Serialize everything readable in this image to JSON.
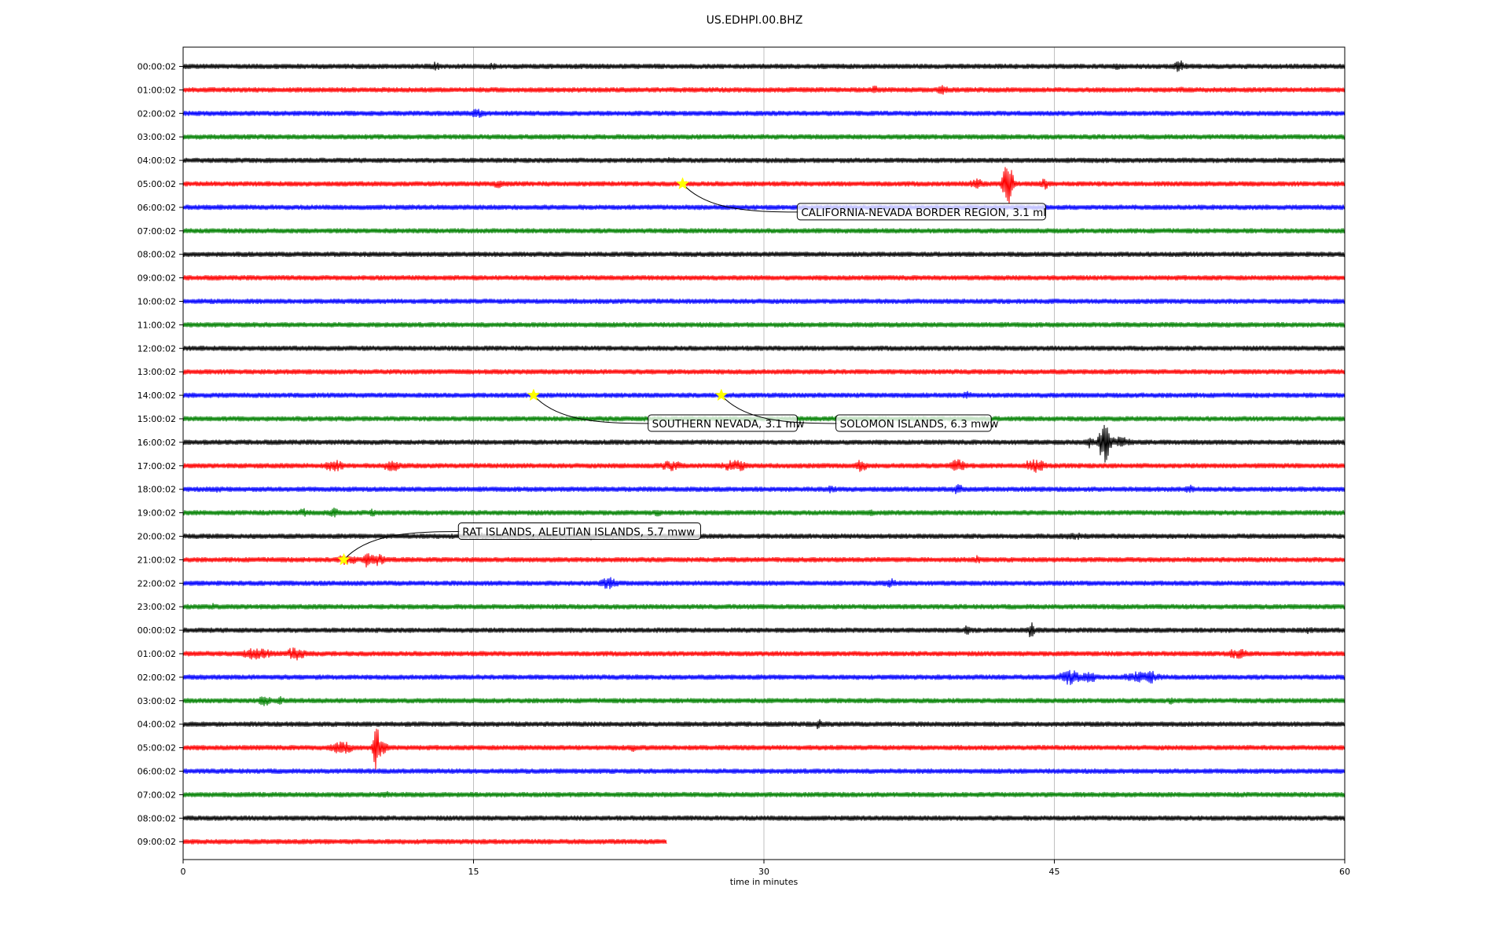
{
  "chart_data": {
    "type": "line",
    "title": "US.EDHPI.00.BHZ",
    "xlabel": "time in minutes",
    "ylabel": "",
    "xlim": [
      0,
      60
    ],
    "xticks": [
      "0",
      "15",
      "30",
      "45",
      "60"
    ],
    "xtick_values": [
      0,
      15,
      30,
      45,
      60
    ],
    "grid": "vertical",
    "trace_colors": [
      "#000000",
      "#ff0000",
      "#0000ff",
      "#008000"
    ],
    "rows": [
      {
        "label": "00:00:02",
        "end": 60,
        "bursts": [
          [
            13,
            0.4,
            6
          ],
          [
            16,
            0.3,
            5
          ],
          [
            48.2,
            0.3,
            5
          ],
          [
            51.5,
            0.4,
            8
          ]
        ]
      },
      {
        "label": "01:00:02",
        "end": 60,
        "bursts": [
          [
            35.7,
            0.3,
            6
          ],
          [
            39.2,
            0.3,
            9
          ],
          [
            51.5,
            0.3,
            5
          ]
        ]
      },
      {
        "label": "02:00:02",
        "end": 60,
        "bursts": [
          [
            15.2,
            0.6,
            6
          ]
        ]
      },
      {
        "label": "03:00:02",
        "end": 60,
        "bursts": []
      },
      {
        "label": "04:00:02",
        "end": 60,
        "bursts": [
          [
            25.2,
            0.3,
            5
          ]
        ]
      },
      {
        "label": "05:00:02",
        "end": 60,
        "bursts": [
          [
            16.3,
            0.4,
            6
          ],
          [
            41,
            0.6,
            7
          ],
          [
            42.6,
            0.3,
            28
          ],
          [
            44.5,
            0.3,
            8
          ]
        ]
      },
      {
        "label": "06:00:02",
        "end": 60,
        "bursts": []
      },
      {
        "label": "07:00:02",
        "end": 60,
        "bursts": []
      },
      {
        "label": "08:00:02",
        "end": 60,
        "bursts": []
      },
      {
        "label": "09:00:02",
        "end": 60,
        "bursts": []
      },
      {
        "label": "10:00:02",
        "end": 60,
        "bursts": []
      },
      {
        "label": "11:00:02",
        "end": 60,
        "bursts": []
      },
      {
        "label": "12:00:02",
        "end": 60,
        "bursts": []
      },
      {
        "label": "13:00:02",
        "end": 60,
        "bursts": []
      },
      {
        "label": "14:00:02",
        "end": 60,
        "bursts": [
          [
            40.5,
            0.3,
            6
          ]
        ]
      },
      {
        "label": "15:00:02",
        "end": 60,
        "bursts": []
      },
      {
        "label": "16:00:02",
        "end": 60,
        "bursts": [
          [
            46.8,
            0.3,
            8
          ],
          [
            47.6,
            0.3,
            30
          ],
          [
            48.3,
            0.8,
            8
          ]
        ]
      },
      {
        "label": "17:00:02",
        "end": 60,
        "bursts": [
          [
            7.8,
            0.6,
            8
          ],
          [
            10.8,
            0.5,
            9
          ],
          [
            25.2,
            0.8,
            7
          ],
          [
            28.5,
            0.8,
            8
          ],
          [
            35,
            0.4,
            8
          ],
          [
            40,
            0.5,
            9
          ],
          [
            44,
            0.8,
            9
          ]
        ]
      },
      {
        "label": "18:00:02",
        "end": 60,
        "bursts": [
          [
            1.8,
            0.2,
            6
          ],
          [
            33.5,
            0.3,
            6
          ],
          [
            40,
            0.4,
            7
          ],
          [
            52,
            0.3,
            6
          ]
        ]
      },
      {
        "label": "19:00:02",
        "end": 60,
        "bursts": [
          [
            6.2,
            0.3,
            6
          ],
          [
            7.8,
            0.4,
            7
          ],
          [
            9.8,
            0.3,
            6
          ],
          [
            24.5,
            0.3,
            5
          ],
          [
            35.5,
            0.3,
            5
          ]
        ]
      },
      {
        "label": "20:00:02",
        "end": 60,
        "bursts": [
          [
            15.5,
            0.3,
            5
          ],
          [
            21,
            0.8,
            5
          ],
          [
            46,
            1.2,
            5
          ]
        ]
      },
      {
        "label": "21:00:02",
        "end": 60,
        "bursts": [
          [
            8.5,
            0.8,
            7
          ],
          [
            9.5,
            0.2,
            14
          ],
          [
            10,
            0.6,
            8
          ],
          [
            41,
            0.3,
            6
          ]
        ]
      },
      {
        "label": "22:00:02",
        "end": 60,
        "bursts": [
          [
            22,
            0.6,
            8
          ],
          [
            36.5,
            0.4,
            7
          ]
        ]
      },
      {
        "label": "23:00:02",
        "end": 60,
        "bursts": [
          [
            1.5,
            0.2,
            5
          ]
        ]
      },
      {
        "label": "00:00:02",
        "end": 60,
        "bursts": [
          [
            40.5,
            0.2,
            7
          ],
          [
            43.8,
            0.2,
            12
          ],
          [
            58.2,
            0.4,
            6
          ]
        ]
      },
      {
        "label": "01:00:02",
        "end": 60,
        "bursts": [
          [
            3.8,
            1,
            8
          ],
          [
            5.8,
            0.6,
            9
          ],
          [
            54.5,
            0.8,
            7
          ]
        ]
      },
      {
        "label": "02:00:02",
        "end": 60,
        "bursts": [
          [
            45.8,
            0.6,
            11
          ],
          [
            46.8,
            0.4,
            9
          ],
          [
            49.5,
            1.2,
            8
          ],
          [
            50,
            0.3,
            9
          ]
        ]
      },
      {
        "label": "03:00:02",
        "end": 60,
        "bursts": [
          [
            4.2,
            0.4,
            8
          ],
          [
            5,
            0.3,
            6
          ],
          [
            51,
            0.3,
            5
          ]
        ]
      },
      {
        "label": "04:00:02",
        "end": 60,
        "bursts": [
          [
            32.8,
            0.2,
            8
          ]
        ]
      },
      {
        "label": "05:00:02",
        "end": 60,
        "bursts": [
          [
            8.2,
            0.7,
            9
          ],
          [
            10,
            0.2,
            30
          ],
          [
            10.3,
            0.4,
            9
          ],
          [
            23.3,
            0.3,
            6
          ]
        ]
      },
      {
        "label": "06:00:02",
        "end": 60,
        "bursts": []
      },
      {
        "label": "07:00:02",
        "end": 60,
        "bursts": [
          [
            10.5,
            0.3,
            5
          ]
        ]
      },
      {
        "label": "08:00:02",
        "end": 60,
        "bursts": []
      },
      {
        "label": "09:00:02",
        "end": 25,
        "bursts": []
      }
    ],
    "events": [
      {
        "text": "CALIFORNIA-NEVADA BORDER REGION, 3.1 ml",
        "row": 5,
        "minute": 25.8,
        "label_minute": 31.8,
        "label_row_offset": 1.2
      },
      {
        "text": "SOUTHERN NEVADA, 3.1 mw",
        "row": 14,
        "minute": 18.1,
        "label_minute": 24.1,
        "label_row_offset": 1.2
      },
      {
        "text": "SOLOMON ISLANDS, 6.3 mww",
        "row": 14,
        "minute": 27.8,
        "label_minute": 33.8,
        "label_row_offset": 1.2
      },
      {
        "text": "RAT ISLANDS, ALEUTIAN ISLANDS, 5.7 mww",
        "row": 21,
        "minute": 8.3,
        "label_minute": 14.3,
        "label_row_offset": -1.2
      }
    ],
    "event_marker_color": "#ffff00"
  }
}
